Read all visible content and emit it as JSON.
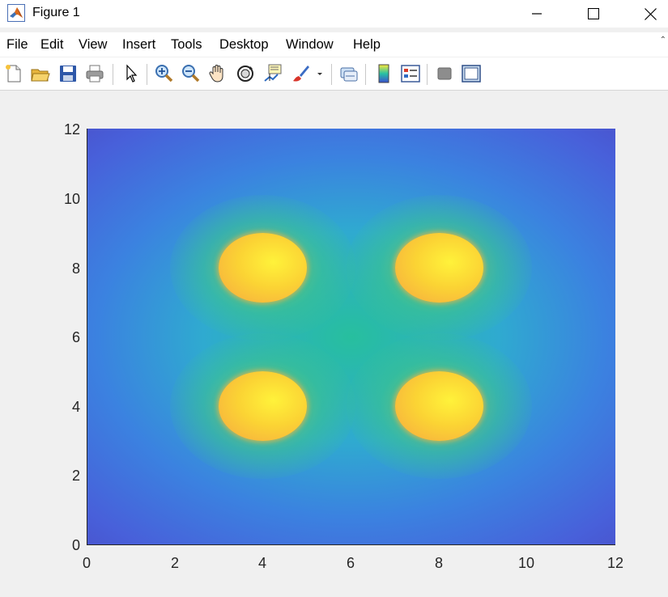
{
  "window": {
    "title": "Figure 1",
    "icons": [
      "matlab-logo-icon",
      "minimize-icon",
      "maximize-icon",
      "close-icon"
    ]
  },
  "menu": {
    "items": [
      "File",
      "Edit",
      "View",
      "Insert",
      "Tools",
      "Desktop",
      "Window",
      "Help"
    ],
    "overflow_glyph": "⌃"
  },
  "toolbar": {
    "buttons": [
      "new-figure-icon",
      "open-file-icon",
      "save-figure-icon",
      "print-figure-icon",
      "edit-plot-icon",
      "zoom-in-icon",
      "zoom-out-icon",
      "pan-icon",
      "rotate-3d-icon",
      "data-cursor-icon",
      "brush-icon",
      "brush-dropdown-icon",
      "link-plot-icon",
      "insert-colorbar-icon",
      "insert-legend-icon",
      "hide-plot-tools-icon",
      "show-plot-tools-icon"
    ]
  },
  "colors": {
    "low": "#4a5bd8",
    "mid": "#23b8a8",
    "high": "#fff23a",
    "axis": "#262626"
  },
  "chart_data": {
    "type": "heatmap",
    "title": "",
    "xlabel": "",
    "ylabel": "",
    "xlim": [
      0,
      12
    ],
    "ylim": [
      0,
      12
    ],
    "xticks": [
      "0",
      "2",
      "4",
      "6",
      "8",
      "10",
      "12"
    ],
    "yticks": [
      "0",
      "2",
      "4",
      "6",
      "8",
      "10",
      "12"
    ],
    "colormap": "parula",
    "hot_spots": [
      {
        "x": 4,
        "y": 8,
        "radius": 1
      },
      {
        "x": 8,
        "y": 8,
        "radius": 1
      },
      {
        "x": 4,
        "y": 4,
        "radius": 1
      },
      {
        "x": 8,
        "y": 4,
        "radius": 1
      }
    ],
    "grid": false
  }
}
